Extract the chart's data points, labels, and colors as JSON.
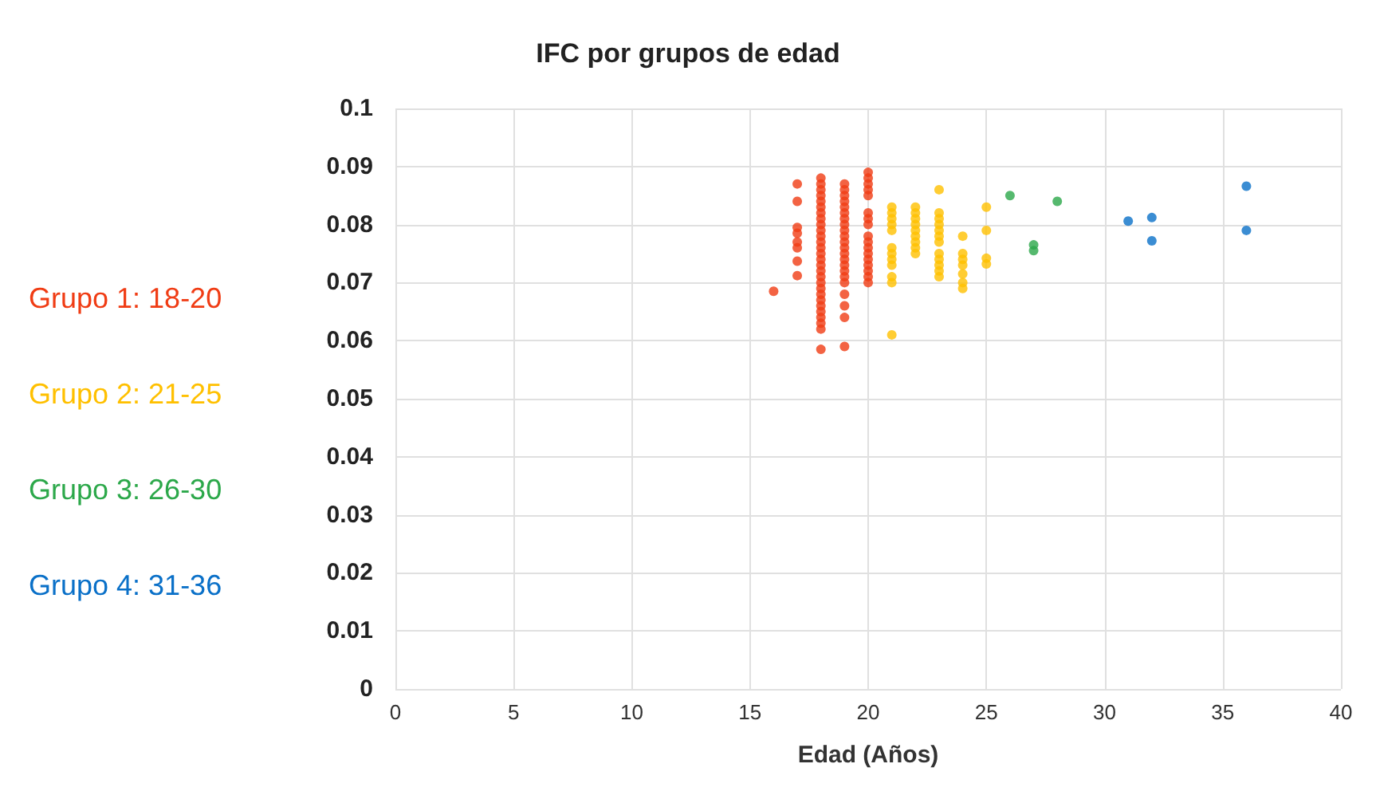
{
  "chart_data": {
    "type": "scatter",
    "title": "IFC por grupos de edad",
    "xlabel": "Edad (Años)",
    "xlim": [
      0,
      40
    ],
    "xticks": [
      0,
      5,
      10,
      15,
      20,
      25,
      30,
      35,
      40
    ],
    "ylim": [
      0,
      0.1
    ],
    "yticks": [
      0,
      0.01,
      0.02,
      0.03,
      0.04,
      0.05,
      0.06,
      0.07,
      0.08,
      0.09,
      0.1
    ],
    "grid": true,
    "legend": "left",
    "marker": "circle",
    "series": [
      {
        "name": "Grupo 1: 18-20",
        "color": "#f03c14",
        "x": [
          16,
          17,
          17,
          17,
          17,
          17,
          17,
          17,
          17,
          18,
          18,
          18,
          18,
          18,
          18,
          18,
          18,
          18,
          18,
          18,
          18,
          18,
          18,
          18,
          18,
          18,
          18,
          18,
          18,
          18,
          18,
          18,
          18,
          18,
          18,
          18,
          18,
          19,
          19,
          19,
          19,
          19,
          19,
          19,
          19,
          19,
          19,
          19,
          19,
          19,
          19,
          19,
          19,
          19,
          19,
          19,
          19,
          19,
          19,
          20,
          20,
          20,
          20,
          20,
          20,
          20,
          20,
          20,
          20,
          20,
          20,
          20,
          20,
          20,
          20,
          20
        ],
        "values": [
          0.0685,
          0.087,
          0.084,
          0.0795,
          0.0785,
          0.077,
          0.076,
          0.0737,
          0.0712,
          0.088,
          0.087,
          0.086,
          0.085,
          0.084,
          0.083,
          0.082,
          0.081,
          0.08,
          0.079,
          0.078,
          0.077,
          0.076,
          0.075,
          0.074,
          0.073,
          0.072,
          0.071,
          0.07,
          0.069,
          0.068,
          0.067,
          0.066,
          0.065,
          0.064,
          0.063,
          0.062,
          0.0585,
          0.087,
          0.086,
          0.085,
          0.084,
          0.083,
          0.082,
          0.081,
          0.08,
          0.079,
          0.078,
          0.077,
          0.076,
          0.075,
          0.074,
          0.073,
          0.072,
          0.071,
          0.07,
          0.068,
          0.066,
          0.064,
          0.059,
          0.089,
          0.088,
          0.087,
          0.086,
          0.085,
          0.082,
          0.081,
          0.08,
          0.078,
          0.077,
          0.076,
          0.075,
          0.074,
          0.073,
          0.072,
          0.071,
          0.07
        ]
      },
      {
        "name": "Grupo 2: 21-25",
        "color": "#ffc000",
        "x": [
          21,
          21,
          21,
          21,
          21,
          21,
          21,
          21,
          21,
          21,
          21,
          21,
          22,
          22,
          22,
          22,
          22,
          22,
          22,
          22,
          22,
          23,
          23,
          23,
          23,
          23,
          23,
          23,
          23,
          23,
          23,
          23,
          23,
          24,
          24,
          24,
          24,
          24,
          24,
          24,
          25,
          25,
          25,
          25
        ],
        "values": [
          0.083,
          0.082,
          0.081,
          0.08,
          0.079,
          0.076,
          0.075,
          0.074,
          0.073,
          0.071,
          0.07,
          0.061,
          0.083,
          0.082,
          0.081,
          0.08,
          0.079,
          0.078,
          0.077,
          0.076,
          0.075,
          0.086,
          0.082,
          0.081,
          0.08,
          0.079,
          0.078,
          0.077,
          0.075,
          0.074,
          0.073,
          0.072,
          0.071,
          0.078,
          0.075,
          0.074,
          0.073,
          0.0715,
          0.07,
          0.069,
          0.083,
          0.079,
          0.0742,
          0.0732
        ]
      },
      {
        "name": "Grupo 3: 26-30",
        "color": "#2ca84a",
        "x": [
          26,
          27,
          27,
          28
        ],
        "values": [
          0.085,
          0.0755,
          0.0765,
          0.084
        ]
      },
      {
        "name": "Grupo 4: 31-36",
        "color": "#0a70c8",
        "x": [
          31,
          32,
          32,
          36,
          36
        ],
        "values": [
          0.0806,
          0.0812,
          0.0772,
          0.0866,
          0.079
        ]
      }
    ]
  }
}
